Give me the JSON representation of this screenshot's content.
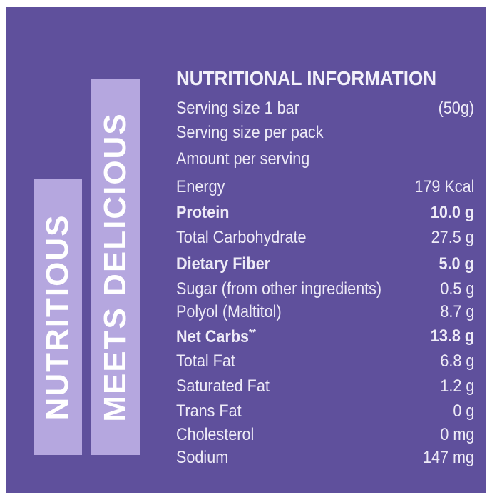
{
  "side_labels": [
    "NUTRITIOUS",
    "MEETS DELICIOUS"
  ],
  "panel": {
    "title": "NUTRITIONAL INFORMATION",
    "rows": [
      {
        "label": "Serving size 1 bar",
        "value": "(50g)"
      },
      {
        "label": "Serving size per pack"
      },
      {
        "label": "Amount per serving"
      },
      {
        "label": "Energy",
        "value": "179 Kcal"
      },
      {
        "label": "Protein",
        "value": "10.0 g",
        "bold": true
      },
      {
        "label": "Total Carbohydrate",
        "value": "27.5 g"
      },
      {
        "label": "Dietary Fiber",
        "value": "5.0 g",
        "bold": true
      },
      {
        "label": "Sugar (from other ingredients)",
        "value": "0.5 g"
      },
      {
        "label": "Polyol (Maltitol)",
        "value": "8.7 g"
      },
      {
        "label": "Net Carbs",
        "note": "**",
        "value": "13.8 g",
        "bold": true
      },
      {
        "label": "Total Fat",
        "value": "6.8 g"
      },
      {
        "label": "Saturated Fat",
        "value": "1.2 g"
      },
      {
        "label": "Trans Fat",
        "value": "0 g"
      },
      {
        "label": "Cholesterol",
        "value": "0 mg"
      },
      {
        "label": "Sodium",
        "value": "147 mg"
      }
    ]
  }
}
